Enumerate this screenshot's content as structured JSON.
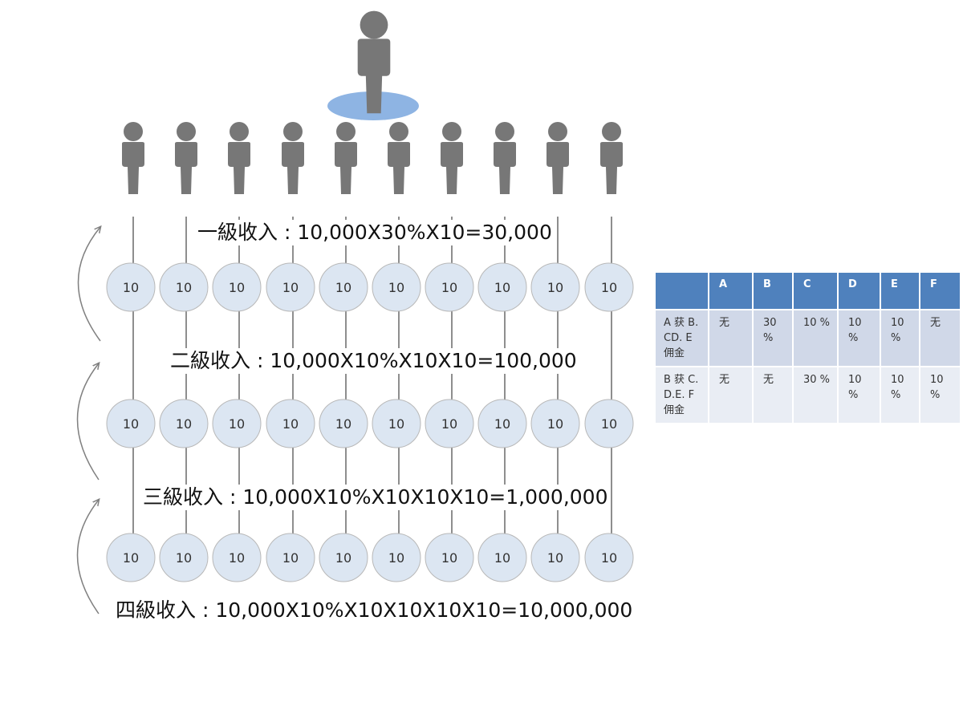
{
  "diagram": {
    "top_person": "person-icon",
    "level1_people": 10,
    "node_label": "10",
    "levels": [
      {
        "label": "一級收入 : 10,000X30%X10=30,000"
      },
      {
        "label": "二級收入 : 10,000X10%X10X10=100,000"
      },
      {
        "label": "三級收入 : 10,000X10%X10X10X10=1,000,000"
      },
      {
        "label": "四級收入 : 10,000X10%X10X10X10X10=10,000,000"
      }
    ],
    "node_rows": 3,
    "colors": {
      "person": "#777777",
      "platform": "#8eb4e3",
      "node_fill": "#dce6f2",
      "node_stroke": "#b8b8b8",
      "line": "#444444",
      "arrow": "#808080"
    }
  },
  "table": {
    "headers": [
      "",
      "A",
      "B",
      "C",
      "D",
      "E",
      "F"
    ],
    "rows": [
      [
        "A 获 B.CD. E 佣金",
        "无",
        "30 %",
        "10 %",
        "10 %",
        "10 %",
        "无"
      ],
      [
        "B 获 C.D.E. F 佣金",
        "无",
        "无",
        "30 %",
        "10 %",
        "10 %",
        "10 %"
      ]
    ],
    "colors": {
      "header": "#4f81bd",
      "row_dark": "#d0d8e8",
      "row_light": "#e9edf4"
    }
  }
}
